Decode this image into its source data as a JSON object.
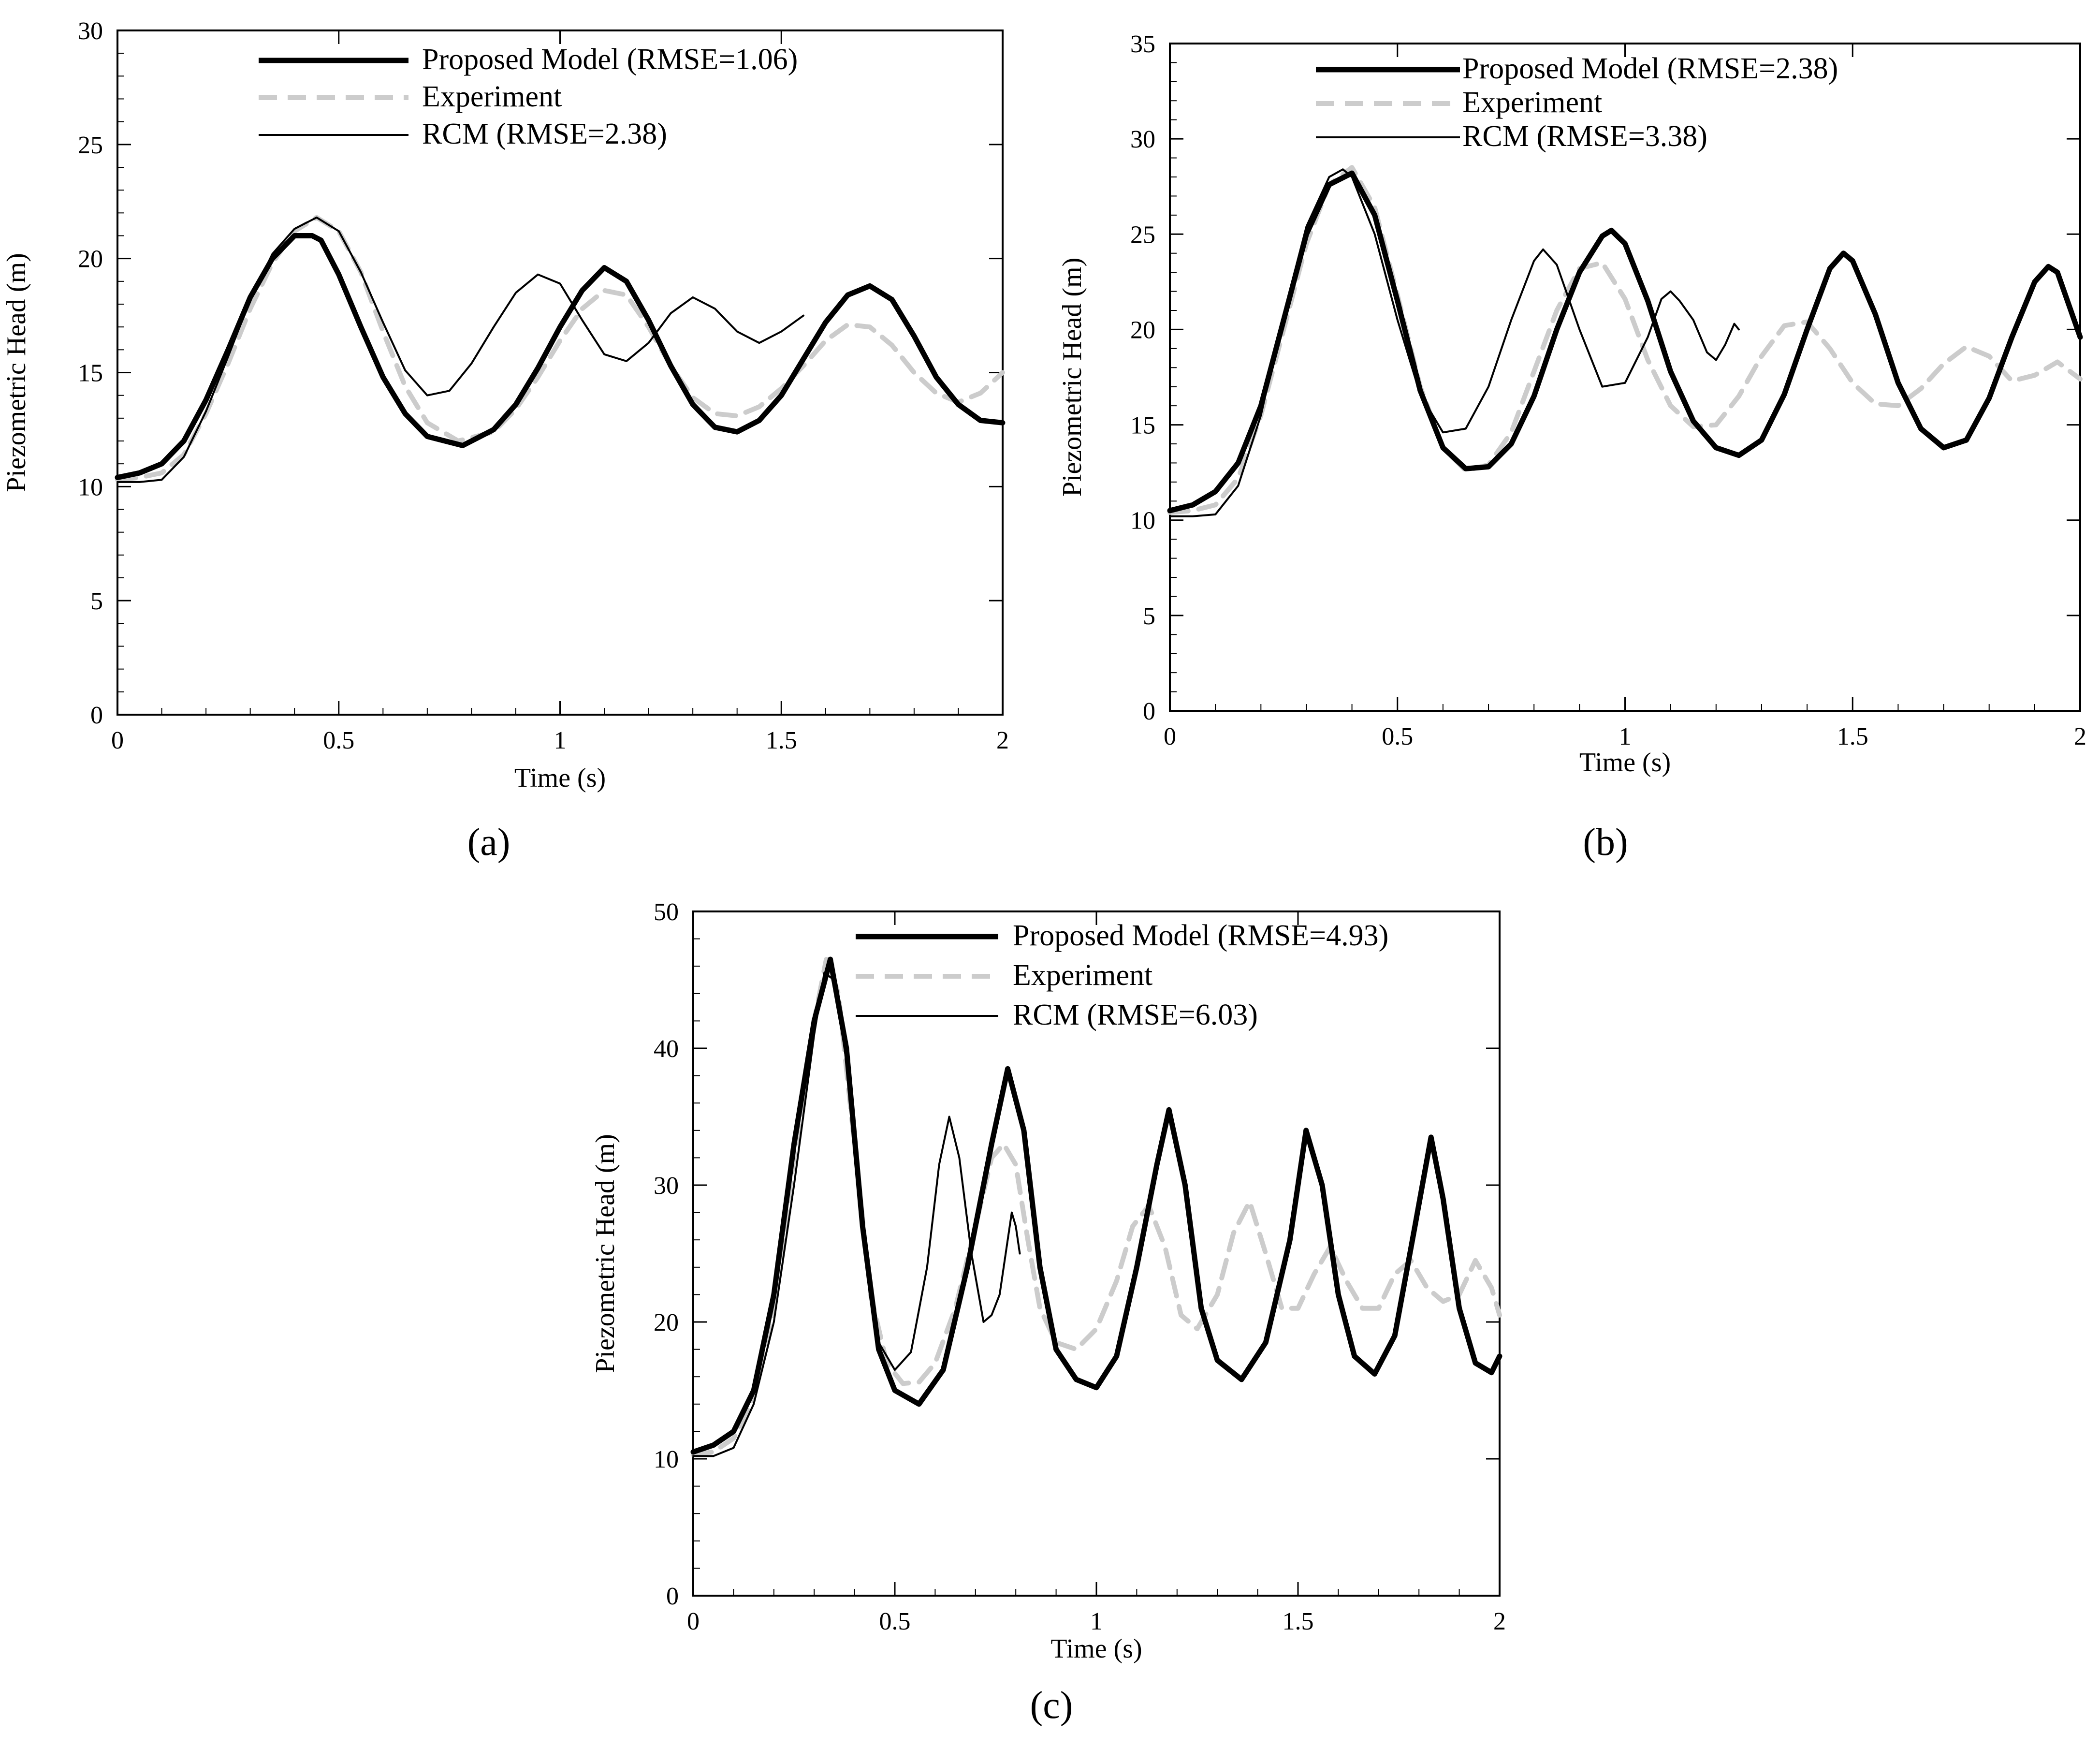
{
  "figure": {
    "captions": [
      "(a)",
      "(b)",
      "(c)"
    ]
  },
  "styles": {
    "proposed": {
      "color": "#000000"
    },
    "experiment": {
      "color": "#cccccc"
    },
    "rcm": {
      "color": "#000000"
    }
  },
  "chart_data": [
    {
      "type": "line",
      "caption": "(a)",
      "xlabel": "Time (s)",
      "ylabel": "Piezometric Head (m)",
      "xlim": [
        0,
        2
      ],
      "ylim": [
        0,
        30
      ],
      "xticks": [
        0,
        0.5,
        1,
        1.5,
        2
      ],
      "xtick_labels": [
        "0",
        "0.5",
        "1",
        "1.5",
        "2"
      ],
      "yticks": [
        0,
        5,
        10,
        15,
        20,
        25,
        30
      ],
      "ytick_labels": [
        "0",
        "5",
        "10",
        "15",
        "20",
        "25",
        "30"
      ],
      "legend": [
        "Proposed Model (RMSE=1.06)",
        "Experiment",
        "RCM (RMSE=2.38)"
      ],
      "legend_position": "top",
      "series": [
        {
          "name": "Proposed Model (RMSE=1.06)",
          "style": "proposed",
          "x": [
            0,
            0.05,
            0.1,
            0.15,
            0.2,
            0.25,
            0.3,
            0.35,
            0.4,
            0.44,
            0.46,
            0.5,
            0.55,
            0.6,
            0.65,
            0.7,
            0.78,
            0.85,
            0.9,
            0.95,
            1.0,
            1.05,
            1.1,
            1.15,
            1.2,
            1.25,
            1.3,
            1.35,
            1.4,
            1.45,
            1.5,
            1.55,
            1.6,
            1.65,
            1.7,
            1.75,
            1.8,
            1.85,
            1.9,
            1.95,
            2.0
          ],
          "y": [
            10.4,
            10.6,
            11.0,
            12.0,
            13.8,
            16.0,
            18.3,
            20.0,
            21.0,
            21.0,
            20.8,
            19.3,
            17.0,
            14.8,
            13.2,
            12.2,
            11.8,
            12.5,
            13.6,
            15.2,
            17.0,
            18.6,
            19.6,
            19.0,
            17.3,
            15.3,
            13.6,
            12.6,
            12.4,
            12.9,
            14.0,
            15.6,
            17.2,
            18.4,
            18.8,
            18.2,
            16.6,
            14.8,
            13.6,
            12.9,
            12.8
          ]
        },
        {
          "name": "Experiment",
          "style": "experiment",
          "x": [
            0,
            0.05,
            0.1,
            0.15,
            0.2,
            0.25,
            0.3,
            0.35,
            0.4,
            0.45,
            0.5,
            0.55,
            0.6,
            0.65,
            0.7,
            0.77,
            0.85,
            0.9,
            0.95,
            1.0,
            1.05,
            1.1,
            1.15,
            1.2,
            1.25,
            1.3,
            1.35,
            1.4,
            1.45,
            1.5,
            1.55,
            1.6,
            1.65,
            1.7,
            1.75,
            1.8,
            1.85,
            1.9,
            1.95,
            2.0
          ],
          "y": [
            10.3,
            10.4,
            10.6,
            11.4,
            13.2,
            15.4,
            17.8,
            19.8,
            21.2,
            21.8,
            21.2,
            19.4,
            16.8,
            14.4,
            12.8,
            12.0,
            12.4,
            13.4,
            14.8,
            16.4,
            17.8,
            18.6,
            18.4,
            17.0,
            15.3,
            13.9,
            13.2,
            13.1,
            13.5,
            14.3,
            15.3,
            16.4,
            17.1,
            17.0,
            16.2,
            15.0,
            14.1,
            13.7,
            14.1,
            15.0
          ]
        },
        {
          "name": "RCM (RMSE=2.38)",
          "style": "rcm",
          "x": [
            0,
            0.05,
            0.1,
            0.15,
            0.2,
            0.25,
            0.3,
            0.35,
            0.4,
            0.45,
            0.5,
            0.55,
            0.6,
            0.65,
            0.7,
            0.75,
            0.8,
            0.85,
            0.9,
            0.95,
            1.0,
            1.05,
            1.1,
            1.15,
            1.2,
            1.25,
            1.3,
            1.35,
            1.4,
            1.45,
            1.5,
            1.55
          ],
          "y": [
            10.2,
            10.2,
            10.3,
            11.3,
            13.3,
            15.7,
            18.2,
            20.2,
            21.3,
            21.8,
            21.2,
            19.4,
            17.2,
            15.1,
            14.0,
            14.2,
            15.4,
            17.0,
            18.5,
            19.3,
            18.9,
            17.3,
            15.8,
            15.5,
            16.3,
            17.6,
            18.3,
            17.8,
            16.8,
            16.3,
            16.8,
            17.5
          ]
        }
      ]
    },
    {
      "type": "line",
      "caption": "(b)",
      "xlabel": "Time (s)",
      "ylabel": "Piezometric Head (m)",
      "xlim": [
        0,
        2
      ],
      "ylim": [
        0,
        35
      ],
      "xticks": [
        0,
        0.5,
        1,
        1.5,
        2
      ],
      "xtick_labels": [
        "0",
        "0.5",
        "1",
        "1.5",
        "2"
      ],
      "yticks": [
        0,
        5,
        10,
        15,
        20,
        25,
        30,
        35
      ],
      "ytick_labels": [
        "0",
        "5",
        "10",
        "15",
        "20",
        "25",
        "30",
        "35"
      ],
      "legend": [
        "Proposed Model (RMSE=2.38)",
        "Experiment",
        "RCM (RMSE=3.38)"
      ],
      "legend_position": "top-right",
      "series": [
        {
          "name": "Proposed Model (RMSE=2.38)",
          "style": "proposed",
          "x": [
            0,
            0.05,
            0.1,
            0.15,
            0.2,
            0.25,
            0.3,
            0.35,
            0.4,
            0.45,
            0.5,
            0.55,
            0.6,
            0.65,
            0.7,
            0.75,
            0.8,
            0.85,
            0.9,
            0.95,
            0.97,
            1.0,
            1.05,
            1.1,
            1.15,
            1.2,
            1.25,
            1.3,
            1.35,
            1.4,
            1.45,
            1.48,
            1.5,
            1.55,
            1.6,
            1.65,
            1.7,
            1.75,
            1.8,
            1.85,
            1.9,
            1.93,
            1.95,
            2.0
          ],
          "y": [
            10.5,
            10.8,
            11.5,
            13.0,
            16.0,
            20.5,
            25.0,
            27.6,
            28.2,
            26.0,
            21.5,
            16.8,
            13.8,
            12.7,
            12.8,
            14.0,
            16.5,
            20.0,
            23.0,
            24.9,
            25.2,
            24.5,
            21.5,
            17.8,
            15.2,
            13.8,
            13.4,
            14.2,
            16.6,
            20.0,
            23.2,
            24.0,
            23.6,
            20.8,
            17.2,
            14.8,
            13.8,
            14.2,
            16.4,
            19.6,
            22.5,
            23.3,
            23.0,
            19.6
          ]
        },
        {
          "name": "Experiment",
          "style": "experiment",
          "x": [
            0,
            0.05,
            0.1,
            0.15,
            0.2,
            0.25,
            0.3,
            0.35,
            0.4,
            0.45,
            0.5,
            0.55,
            0.6,
            0.65,
            0.7,
            0.75,
            0.8,
            0.85,
            0.9,
            0.95,
            1.0,
            1.05,
            1.1,
            1.15,
            1.2,
            1.25,
            1.3,
            1.35,
            1.4,
            1.45,
            1.5,
            1.55,
            1.6,
            1.65,
            1.7,
            1.75,
            1.8,
            1.85,
            1.9,
            1.95,
            2.0
          ],
          "y": [
            10.4,
            10.5,
            10.8,
            12.2,
            15.5,
            20.0,
            24.5,
            27.6,
            28.5,
            26.4,
            21.8,
            17.0,
            13.8,
            12.6,
            12.9,
            14.6,
            17.8,
            21.0,
            23.2,
            23.5,
            21.6,
            18.4,
            16.0,
            14.9,
            15.0,
            16.5,
            18.6,
            20.2,
            20.4,
            19.0,
            17.2,
            16.1,
            16.0,
            16.9,
            18.2,
            19.1,
            18.6,
            17.3,
            17.6,
            18.3,
            17.4
          ]
        },
        {
          "name": "RCM (RMSE=3.38)",
          "style": "rcm",
          "x": [
            0,
            0.05,
            0.1,
            0.15,
            0.2,
            0.25,
            0.3,
            0.35,
            0.38,
            0.4,
            0.45,
            0.5,
            0.55,
            0.6,
            0.65,
            0.7,
            0.75,
            0.8,
            0.82,
            0.85,
            0.9,
            0.95,
            1.0,
            1.05,
            1.08,
            1.1,
            1.12,
            1.15,
            1.18,
            1.2,
            1.22,
            1.24,
            1.25
          ],
          "y": [
            10.2,
            10.2,
            10.3,
            11.8,
            15.5,
            20.8,
            25.4,
            28.0,
            28.4,
            28.0,
            25.0,
            20.5,
            16.6,
            14.6,
            14.8,
            17.0,
            20.5,
            23.6,
            24.2,
            23.4,
            20.0,
            17.0,
            17.2,
            19.6,
            21.6,
            22.0,
            21.5,
            20.5,
            18.8,
            18.4,
            19.2,
            20.3,
            20.0
          ]
        }
      ]
    },
    {
      "type": "line",
      "caption": "(c)",
      "xlabel": "Time (s)",
      "ylabel": "Piezometric Head (m)",
      "xlim": [
        0,
        2
      ],
      "ylim": [
        0,
        50
      ],
      "xticks": [
        0,
        0.5,
        1,
        1.5,
        2
      ],
      "xtick_labels": [
        "0",
        "0.5",
        "1",
        "1.5",
        "2"
      ],
      "yticks": [
        0,
        10,
        20,
        30,
        40,
        50
      ],
      "ytick_labels": [
        "0",
        "10",
        "20",
        "30",
        "40",
        "50"
      ],
      "legend": [
        "Proposed Model (RMSE=4.93)",
        "Experiment",
        "RCM (RMSE=6.03)"
      ],
      "legend_position": "top-right",
      "series": [
        {
          "name": "Proposed Model (RMSE=4.93)",
          "style": "proposed",
          "x": [
            0,
            0.05,
            0.1,
            0.15,
            0.2,
            0.25,
            0.3,
            0.34,
            0.38,
            0.42,
            0.46,
            0.5,
            0.56,
            0.62,
            0.68,
            0.74,
            0.78,
            0.82,
            0.86,
            0.9,
            0.95,
            1.0,
            1.05,
            1.1,
            1.15,
            1.18,
            1.22,
            1.26,
            1.3,
            1.36,
            1.42,
            1.48,
            1.52,
            1.56,
            1.6,
            1.64,
            1.69,
            1.74,
            1.79,
            1.83,
            1.86,
            1.9,
            1.94,
            1.98,
            2.0
          ],
          "y": [
            10.5,
            11.0,
            12.0,
            15.0,
            22.0,
            33.0,
            42.0,
            46.5,
            40.0,
            27.0,
            18.0,
            15.0,
            14.0,
            16.5,
            24.0,
            33.0,
            38.5,
            34.0,
            24.0,
            18.0,
            15.8,
            15.2,
            17.5,
            24.0,
            31.5,
            35.5,
            30.0,
            21.0,
            17.2,
            15.8,
            18.5,
            26.0,
            34.0,
            30.0,
            22.0,
            17.5,
            16.2,
            19.0,
            27.0,
            33.5,
            29.0,
            21.0,
            17.0,
            16.3,
            17.5
          ]
        },
        {
          "name": "Experiment",
          "style": "experiment",
          "x": [
            0,
            0.05,
            0.1,
            0.15,
            0.2,
            0.25,
            0.3,
            0.33,
            0.36,
            0.4,
            0.44,
            0.48,
            0.52,
            0.56,
            0.6,
            0.65,
            0.7,
            0.74,
            0.77,
            0.8,
            0.83,
            0.86,
            0.9,
            0.95,
            1.0,
            1.05,
            1.09,
            1.13,
            1.17,
            1.21,
            1.25,
            1.3,
            1.34,
            1.38,
            1.42,
            1.46,
            1.5,
            1.54,
            1.58,
            1.62,
            1.66,
            1.7,
            1.74,
            1.78,
            1.82,
            1.86,
            1.9,
            1.94,
            1.98,
            2.0
          ],
          "y": [
            10.3,
            10.5,
            11.5,
            14.5,
            21.0,
            32.0,
            42.0,
            46.5,
            44.0,
            33.0,
            22.0,
            17.0,
            15.5,
            15.6,
            17.0,
            21.0,
            27.0,
            32.0,
            33.0,
            31.5,
            26.0,
            21.0,
            18.5,
            18.0,
            19.5,
            23.0,
            27.0,
            28.5,
            25.5,
            20.5,
            19.5,
            22.0,
            26.5,
            28.8,
            25.0,
            21.0,
            21.0,
            23.5,
            25.5,
            23.0,
            21.0,
            21.0,
            23.5,
            24.5,
            22.5,
            21.5,
            22.0,
            24.5,
            22.5,
            20.5
          ]
        },
        {
          "name": "RCM (RMSE=6.03)",
          "style": "rcm",
          "x": [
            0,
            0.05,
            0.1,
            0.15,
            0.2,
            0.25,
            0.3,
            0.325,
            0.35,
            0.38,
            0.42,
            0.46,
            0.5,
            0.54,
            0.58,
            0.61,
            0.635,
            0.66,
            0.69,
            0.72,
            0.74,
            0.76,
            0.78,
            0.79,
            0.8,
            0.81
          ],
          "y": [
            10.2,
            10.2,
            10.8,
            14.0,
            20.0,
            30.0,
            41.0,
            45.5,
            45.0,
            39.0,
            27.0,
            18.5,
            16.5,
            17.8,
            24.0,
            31.5,
            35.0,
            32.0,
            25.0,
            20.0,
            20.5,
            22.0,
            26.0,
            28.0,
            27.0,
            25.0
          ]
        }
      ]
    }
  ]
}
